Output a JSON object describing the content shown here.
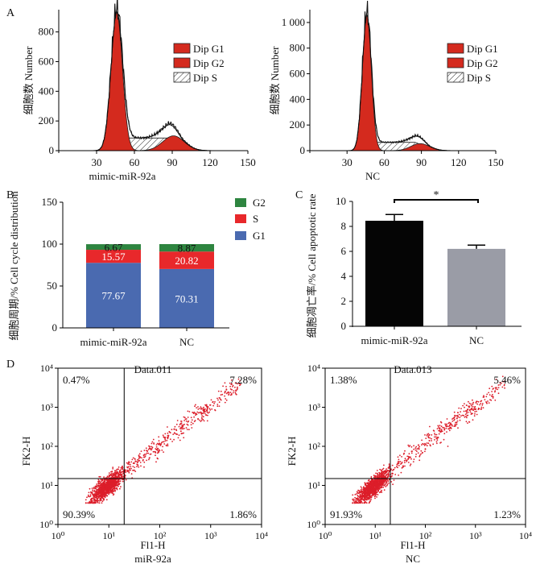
{
  "panel_labels": [
    "A",
    "B",
    "C",
    "D"
  ],
  "chart_data": [
    {
      "id": "A1",
      "type": "area",
      "title": "",
      "xlabel": "mimic-miR-92a",
      "ylabel": "细胞数 Number",
      "xlim": [
        0,
        150
      ],
      "ylim": [
        0,
        950
      ],
      "xticks": [
        "30",
        "60",
        "90",
        "120",
        "150"
      ],
      "xtick_values": [
        30,
        60,
        90,
        120,
        150
      ],
      "yticks": [
        "0",
        "200",
        "400",
        "600",
        "800"
      ],
      "ytick_values": [
        0,
        200,
        400,
        600,
        800
      ],
      "legend": [
        "Dip G1",
        "Dip G2",
        "Dip S"
      ],
      "series": [
        {
          "name": "Dip G1",
          "mean": 46,
          "sd": 4.5,
          "peak": 930
        },
        {
          "name": "Dip G2",
          "mean": 91,
          "sd": 8.5,
          "peak": 100
        },
        {
          "name": "Dip S",
          "from": 48,
          "to": 94,
          "level": 85
        }
      ],
      "observed_peak": 955
    },
    {
      "id": "A2",
      "type": "area",
      "title": "",
      "xlabel": "NC",
      "ylabel": "细胞数 Number",
      "xlim": [
        0,
        150
      ],
      "ylim": [
        0,
        1100
      ],
      "xticks": [
        "30",
        "60",
        "90",
        "120",
        "150"
      ],
      "xtick_values": [
        30,
        60,
        90,
        120,
        150
      ],
      "yticks": [
        "0",
        "200",
        "400",
        "600",
        "800",
        "1 000"
      ],
      "ytick_values": [
        0,
        200,
        400,
        600,
        800,
        1000
      ],
      "legend": [
        "Dip G1",
        "Dip G2",
        "Dip S"
      ],
      "series": [
        {
          "name": "Dip G1",
          "mean": 46,
          "sd": 3.6,
          "peak": 1060
        },
        {
          "name": "Dip G2",
          "mean": 89,
          "sd": 7.5,
          "peak": 55
        },
        {
          "name": "Dip S",
          "from": 48,
          "to": 92,
          "level": 65
        }
      ],
      "observed_peak": 1080
    },
    {
      "id": "B",
      "type": "bar",
      "stacked": true,
      "title": "",
      "xlabel": "",
      "ylabel": "细胞周期/% Cell cycle distribution",
      "categories": [
        "mimic-miR-92a",
        "NC"
      ],
      "ylim": [
        0,
        150
      ],
      "yticks": [
        "0",
        "50",
        "100",
        "150"
      ],
      "ytick_values": [
        0,
        50,
        100,
        150
      ],
      "series": [
        {
          "name": "G1",
          "color": "#4a6ab0",
          "values": [
            77.67,
            70.31
          ],
          "labels": [
            "77.67",
            "70.31"
          ]
        },
        {
          "name": "S",
          "color": "#e8282b",
          "values": [
            15.57,
            20.82
          ],
          "labels": [
            "15.57",
            "20.82"
          ]
        },
        {
          "name": "G2",
          "color": "#2e8540",
          "values": [
            6.67,
            8.87
          ],
          "labels": [
            "6.67",
            "8.87"
          ]
        }
      ],
      "legend": [
        "G2",
        "S",
        "G1"
      ]
    },
    {
      "id": "C",
      "type": "bar",
      "title": "",
      "xlabel": "",
      "ylabel": "细胞凋亡率/% Cell apoptotic rate",
      "categories": [
        "mimic-miR-92a",
        "NC"
      ],
      "values": [
        8.45,
        6.2
      ],
      "errors": [
        0.5,
        0.3
      ],
      "colors": [
        "#050505",
        "#9a9ca6"
      ],
      "ylim": [
        0,
        10
      ],
      "yticks": [
        "0",
        "2",
        "4",
        "6",
        "8",
        "10"
      ],
      "ytick_values": [
        0,
        2,
        4,
        6,
        8,
        10
      ],
      "significance": "*"
    },
    {
      "id": "D1",
      "type": "scatter",
      "title": "Data.011",
      "xlabel": "Fl1-H",
      "ylabel": "FK2-H",
      "sublabel": "miR-92a",
      "xlim": [
        1,
        10000
      ],
      "ylim": [
        1,
        10000
      ],
      "scale": "log",
      "xtick_labels": [
        "10⁰",
        "10¹",
        "10²",
        "10³",
        "10⁴"
      ],
      "ytick_labels": [
        "10⁰",
        "10¹",
        "10²",
        "10³",
        "10⁴"
      ],
      "gate": {
        "x": 20,
        "y": 15
      },
      "quadrants": {
        "upper_left": "0.47%",
        "upper_right": "7.28%",
        "lower_left": "90.39%",
        "lower_right": "1.86%"
      }
    },
    {
      "id": "D2",
      "type": "scatter",
      "title": "Data.013",
      "xlabel": "Fl1-H",
      "ylabel": "FK2-H",
      "sublabel": "NC",
      "xlim": [
        1,
        10000
      ],
      "ylim": [
        1,
        10000
      ],
      "scale": "log",
      "xtick_labels": [
        "10⁰",
        "10¹",
        "10²",
        "10³",
        "10⁴"
      ],
      "ytick_labels": [
        "10⁰",
        "10¹",
        "10²",
        "10³",
        "10⁴"
      ],
      "gate": {
        "x": 20,
        "y": 15
      },
      "quadrants": {
        "upper_left": "1.38%",
        "upper_right": "5.46%",
        "lower_left": "91.93%",
        "lower_right": "1.23%"
      }
    }
  ]
}
